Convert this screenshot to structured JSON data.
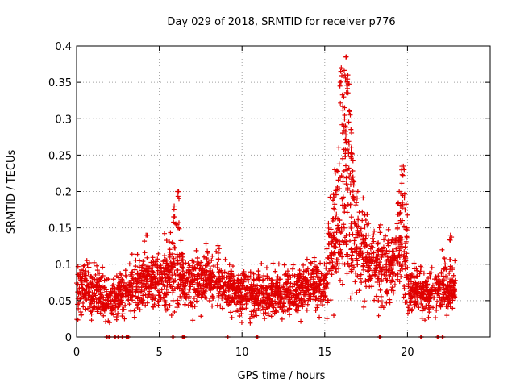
{
  "chart_data": {
    "type": "scatter",
    "title": "Day 029 of 2018, SRMTID for receiver p776",
    "xlabel": "GPS time / hours",
    "ylabel": "SRMTID / TECUs",
    "xlim": [
      0,
      25
    ],
    "ylim": [
      0,
      0.4
    ],
    "grid": true,
    "marker": "+",
    "series_color": "#e00000",
    "x_ticks": [
      0,
      5,
      10,
      15,
      20
    ],
    "x_tick_labels": [
      "0",
      "5",
      "10",
      "15",
      "20"
    ],
    "y_ticks": [
      0,
      0.05,
      0.1,
      0.15,
      0.2,
      0.25,
      0.3,
      0.35,
      0.4
    ],
    "y_tick_labels": [
      "0",
      "0.05",
      "0.1",
      "0.15",
      "0.2",
      "0.25",
      "0.3",
      "0.35",
      "0.4"
    ],
    "segments": [
      {
        "x0": 0.0,
        "x1": 0.8,
        "mean": 0.065,
        "spread": 0.028
      },
      {
        "x0": 0.8,
        "x1": 1.6,
        "mean": 0.06,
        "spread": 0.025
      },
      {
        "x0": 1.6,
        "x1": 2.4,
        "mean": 0.05,
        "spread": 0.022
      },
      {
        "x0": 2.4,
        "x1": 3.2,
        "mean": 0.058,
        "spread": 0.025
      },
      {
        "x0": 3.2,
        "x1": 4.0,
        "mean": 0.072,
        "spread": 0.028
      },
      {
        "x0": 4.0,
        "x1": 4.8,
        "mean": 0.075,
        "spread": 0.03
      },
      {
        "x0": 4.8,
        "x1": 5.6,
        "mean": 0.08,
        "spread": 0.032
      },
      {
        "x0": 5.6,
        "x1": 6.4,
        "mean": 0.085,
        "spread": 0.035
      },
      {
        "x0": 6.4,
        "x1": 7.2,
        "mean": 0.075,
        "spread": 0.03
      },
      {
        "x0": 7.2,
        "x1": 8.0,
        "mean": 0.08,
        "spread": 0.03
      },
      {
        "x0": 8.0,
        "x1": 8.8,
        "mean": 0.075,
        "spread": 0.03
      },
      {
        "x0": 8.8,
        "x1": 9.6,
        "mean": 0.065,
        "spread": 0.028
      },
      {
        "x0": 9.6,
        "x1": 10.4,
        "mean": 0.06,
        "spread": 0.025
      },
      {
        "x0": 10.4,
        "x1": 11.2,
        "mean": 0.06,
        "spread": 0.025
      },
      {
        "x0": 11.2,
        "x1": 12.0,
        "mean": 0.058,
        "spread": 0.025
      },
      {
        "x0": 12.0,
        "x1": 12.8,
        "mean": 0.06,
        "spread": 0.025
      },
      {
        "x0": 12.8,
        "x1": 13.6,
        "mean": 0.063,
        "spread": 0.025
      },
      {
        "x0": 13.6,
        "x1": 14.4,
        "mean": 0.068,
        "spread": 0.027
      },
      {
        "x0": 14.4,
        "x1": 15.2,
        "mean": 0.07,
        "spread": 0.028
      },
      {
        "x0": 15.2,
        "x1": 16.0,
        "mean": 0.12,
        "spread": 0.06
      },
      {
        "x0": 16.0,
        "x1": 16.8,
        "mean": 0.17,
        "spread": 0.1
      },
      {
        "x0": 16.8,
        "x1": 17.6,
        "mean": 0.12,
        "spread": 0.05
      },
      {
        "x0": 17.6,
        "x1": 18.4,
        "mean": 0.1,
        "spread": 0.04
      },
      {
        "x0": 18.4,
        "x1": 19.2,
        "mean": 0.095,
        "spread": 0.04
      },
      {
        "x0": 19.2,
        "x1": 20.0,
        "mean": 0.11,
        "spread": 0.05
      },
      {
        "x0": 20.0,
        "x1": 20.8,
        "mean": 0.065,
        "spread": 0.025
      },
      {
        "x0": 20.8,
        "x1": 21.6,
        "mean": 0.06,
        "spread": 0.025
      },
      {
        "x0": 21.6,
        "x1": 22.9,
        "mean": 0.065,
        "spread": 0.028
      }
    ],
    "peaks": [
      {
        "x": 15.6,
        "y": 0.23
      },
      {
        "x": 15.85,
        "y": 0.26
      },
      {
        "x": 16.0,
        "y": 0.37
      },
      {
        "x": 16.15,
        "y": 0.33
      },
      {
        "x": 16.25,
        "y": 0.29
      },
      {
        "x": 16.3,
        "y": 0.385
      },
      {
        "x": 16.4,
        "y": 0.36
      },
      {
        "x": 16.5,
        "y": 0.31
      },
      {
        "x": 16.6,
        "y": 0.26
      },
      {
        "x": 16.7,
        "y": 0.22
      },
      {
        "x": 17.0,
        "y": 0.2
      },
      {
        "x": 19.5,
        "y": 0.2
      },
      {
        "x": 19.75,
        "y": 0.235
      },
      {
        "x": 19.8,
        "y": 0.23
      },
      {
        "x": 6.1,
        "y": 0.2
      },
      {
        "x": 5.9,
        "y": 0.18
      },
      {
        "x": 4.2,
        "y": 0.14
      },
      {
        "x": 22.6,
        "y": 0.14
      }
    ],
    "zero_points_x": [
      1.8,
      1.95,
      2.3,
      2.5,
      2.75,
      3.0,
      3.1,
      5.8,
      6.4,
      6.5,
      9.1,
      10.9,
      18.3,
      20.8,
      21.8,
      22.1
    ]
  }
}
